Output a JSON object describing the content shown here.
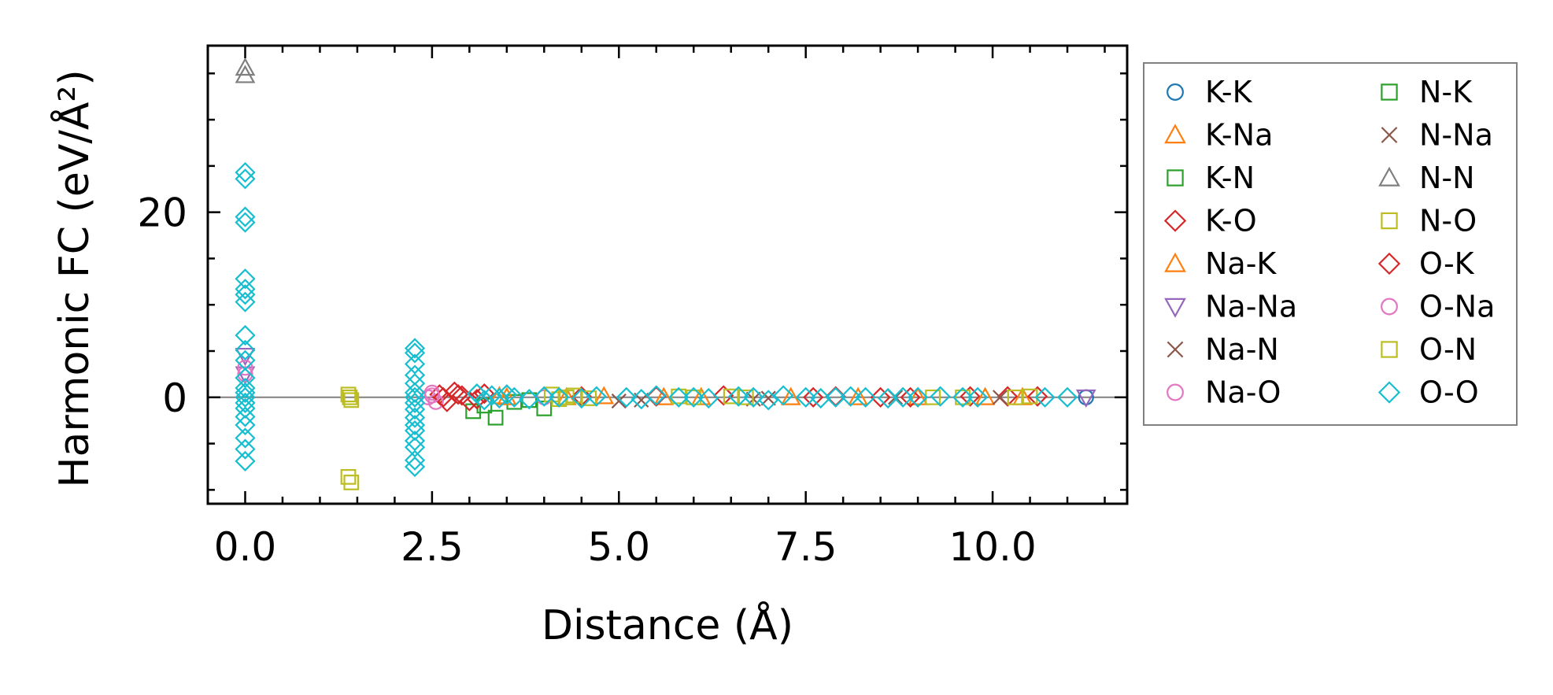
{
  "chart_data": {
    "type": "scatter",
    "title": "",
    "xlabel": "Distance (Å)",
    "ylabel": "Harmonic FC (eV/Å²)",
    "xlim": [
      -0.5,
      11.8
    ],
    "ylim": [
      -11.5,
      38
    ],
    "x_ticks": [
      0.0,
      2.5,
      5.0,
      7.5,
      10.0
    ],
    "x_tick_labels": [
      "0.0",
      "2.5",
      "5.0",
      "7.5",
      "10.0"
    ],
    "y_ticks": [
      0,
      20
    ],
    "y_tick_labels": [
      "0",
      "20"
    ],
    "reference_line_y": 0,
    "legend_position": "outside-right",
    "series": [
      {
        "name": "K-K",
        "marker": "circle",
        "color": "#1f77b4",
        "x": [
          11.25
        ],
        "y": [
          0.0
        ]
      },
      {
        "name": "K-Na",
        "marker": "triangle-up",
        "color": "#ff7f0e",
        "x": [
          3.4,
          4.3,
          5.6,
          7.3,
          9.0,
          10.4
        ],
        "y": [
          0.1,
          0.0,
          0.0,
          0.0,
          0.0,
          0.0
        ]
      },
      {
        "name": "K-N",
        "marker": "square",
        "color": "#2ca02c",
        "x": [
          3.05,
          3.35,
          4.0,
          3.6
        ],
        "y": [
          -1.5,
          -2.2,
          -1.2,
          -0.5
        ]
      },
      {
        "name": "K-O",
        "marker": "diamond",
        "color": "#d62728",
        "x": [
          2.6,
          2.7,
          2.8,
          2.9,
          3.0,
          3.2,
          4.5,
          6.4,
          7.9,
          8.5,
          9.7,
          10.2,
          10.6
        ],
        "y": [
          0.3,
          -0.5,
          0.6,
          0.2,
          -0.4,
          0.4,
          0.1,
          0.2,
          0.1,
          0.0,
          0.1,
          0.1,
          0.1
        ]
      },
      {
        "name": "Na-K",
        "marker": "triangle-up",
        "color": "#ff7f0e",
        "x": [
          3.5,
          4.8,
          6.1,
          8.2,
          9.9
        ],
        "y": [
          0.0,
          0.1,
          0.0,
          0.0,
          0.0
        ]
      },
      {
        "name": "Na-Na",
        "marker": "triangle-down",
        "color": "#9467bd",
        "x": [
          0.0,
          0.0,
          11.25
        ],
        "y": [
          4.5,
          2.5,
          0.0
        ]
      },
      {
        "name": "Na-N",
        "marker": "x",
        "color": "#8c564b",
        "x": [
          5.0,
          6.8,
          8.7,
          10.1
        ],
        "y": [
          -0.4,
          -0.2,
          0.0,
          0.0
        ]
      },
      {
        "name": "Na-O",
        "marker": "circle",
        "color": "#e377c2",
        "x": [
          0.0,
          2.45,
          2.55,
          2.5,
          4.0
        ],
        "y": [
          2.5,
          0.0,
          -0.5,
          0.5,
          0.0
        ]
      },
      {
        "name": "N-K",
        "marker": "square",
        "color": "#2ca02c",
        "x": [
          3.2,
          3.8
        ],
        "y": [
          -0.9,
          -0.3
        ]
      },
      {
        "name": "N-Na",
        "marker": "x",
        "color": "#8c564b",
        "x": [
          5.3,
          7.0
        ],
        "y": [
          -0.3,
          -0.1
        ]
      },
      {
        "name": "N-N",
        "marker": "triangle-up",
        "color": "#7f7f7f",
        "x": [
          0.0,
          0.0
        ],
        "y": [
          34.8,
          35.6
        ]
      },
      {
        "name": "N-O",
        "marker": "square",
        "color": "#bcbd22",
        "x": [
          1.38,
          1.42,
          1.38,
          1.42,
          1.4,
          4.1,
          4.2,
          4.4,
          4.6,
          6.0,
          6.5,
          9.2,
          10.3,
          10.5
        ],
        "y": [
          0.3,
          -0.3,
          -8.6,
          -9.2,
          0.0,
          0.3,
          -0.2,
          0.2,
          -0.1,
          0.0,
          0.1,
          0.0,
          0.0,
          0.1
        ]
      },
      {
        "name": "O-K",
        "marker": "diamond",
        "color": "#d62728",
        "x": [
          2.65,
          2.85,
          3.1,
          5.5,
          7.6,
          8.9
        ],
        "y": [
          0.0,
          0.3,
          -0.2,
          0.1,
          0.0,
          0.0
        ]
      },
      {
        "name": "O-Na",
        "marker": "circle",
        "color": "#e377c2",
        "x": [
          0.0,
          2.5
        ],
        "y": [
          3.2,
          0.2
        ]
      },
      {
        "name": "O-N",
        "marker": "square",
        "color": "#bcbd22",
        "x": [
          4.3,
          5.8,
          6.7,
          9.6
        ],
        "y": [
          0.0,
          0.1,
          0.0,
          0.0
        ]
      },
      {
        "name": "O-O",
        "marker": "diamond",
        "color": "#17becf",
        "x": [
          0.0,
          0.0,
          0.0,
          0.0,
          0.0,
          0.0,
          0.0,
          0.0,
          0.0,
          0.0,
          0.0,
          0.0,
          0.0,
          0.0,
          0.0,
          0.0,
          0.0,
          0.0,
          0.0,
          0.0,
          0.0,
          0.0,
          2.27,
          2.27,
          2.27,
          2.27,
          2.27,
          2.27,
          2.27,
          2.27,
          2.27,
          2.27,
          2.27,
          2.27,
          2.27,
          2.27,
          2.27,
          2.27,
          3.1,
          3.2,
          3.3,
          3.4,
          3.5,
          3.6,
          3.8,
          4.0,
          4.2,
          4.5,
          4.7,
          5.1,
          5.3,
          5.5,
          5.8,
          6.0,
          6.2,
          6.6,
          6.8,
          7.0,
          7.2,
          7.5,
          7.7,
          7.9,
          8.1,
          8.3,
          8.6,
          8.8,
          9.0,
          9.3,
          9.6,
          9.8,
          10.7,
          11.0
        ],
        "y": [
          24.3,
          23.6,
          19.5,
          18.9,
          12.8,
          11.7,
          11.1,
          10.3,
          6.7,
          5.1,
          4.0,
          2.1,
          1.0,
          0.5,
          0.0,
          -0.6,
          -1.2,
          -2.1,
          -3.0,
          -4.4,
          -5.6,
          -6.9,
          5.3,
          4.8,
          3.6,
          2.4,
          1.5,
          0.5,
          0.0,
          -0.6,
          -1.3,
          -2.2,
          -3.6,
          -4.7,
          -5.4,
          -6.8,
          -7.5,
          -3.0,
          0.4,
          -0.3,
          0.2,
          -0.1,
          0.3,
          0.0,
          -0.2,
          0.1,
          0.0,
          -0.1,
          0.1,
          0.0,
          -0.2,
          0.2,
          0.0,
          0.0,
          -0.1,
          0.1,
          0.0,
          -0.3,
          0.2,
          0.0,
          -0.1,
          0.0,
          0.1,
          0.0,
          -0.1,
          0.0,
          0.0,
          0.1,
          0.0,
          0.0,
          0.0,
          0.0
        ]
      }
    ]
  }
}
